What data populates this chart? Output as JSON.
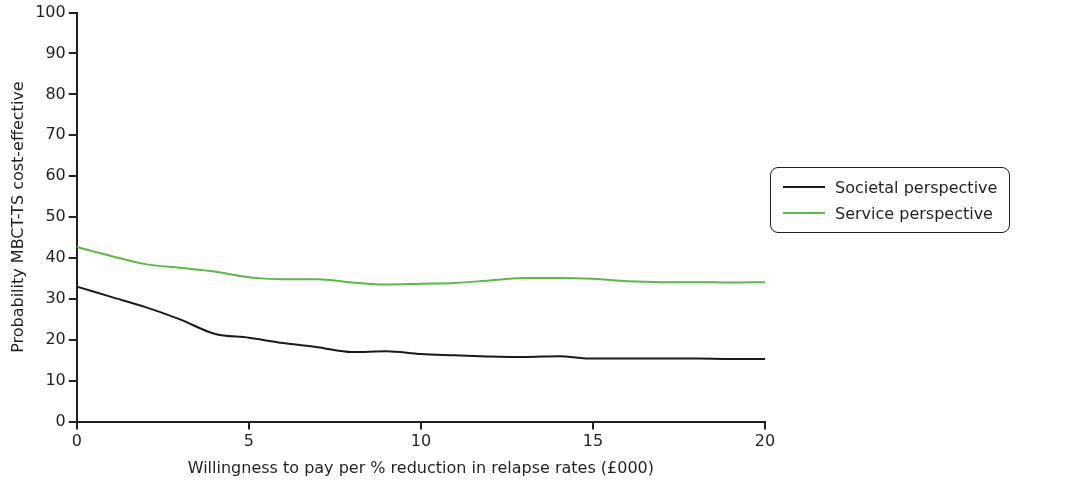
{
  "chart_data": {
    "type": "line",
    "xlabel": "Willingness to pay per % reduction in relapse rates (£000)",
    "ylabel": "Probability MBCT-TS cost-effective",
    "x": [
      0,
      1,
      2,
      3,
      4,
      5,
      6,
      7,
      8,
      9,
      10,
      11,
      12,
      13,
      14,
      15,
      16,
      17,
      18,
      19,
      20
    ],
    "series": [
      {
        "name": "Societal perspective",
        "color": "#1a1a1a",
        "values": [
          33,
          30.5,
          28,
          25,
          21.5,
          20.5,
          19.2,
          18.2,
          17,
          17.2,
          16.5,
          16.2,
          15.9,
          15.8,
          16,
          15.4,
          15.4,
          15.4,
          15.4,
          15.3,
          15.3
        ]
      },
      {
        "name": "Service perspective",
        "color": "#5cb84a",
        "values": [
          42.7,
          40.5,
          38.5,
          37.6,
          36.7,
          35.3,
          34.8,
          34.8,
          34,
          33.5,
          33.7,
          33.9,
          34.5,
          35.1,
          35.1,
          34.9,
          34.3,
          34.1,
          34.1,
          34,
          34.1
        ]
      }
    ],
    "xlim": [
      0,
      20
    ],
    "xticks": [
      0,
      5,
      10,
      15,
      20
    ],
    "ylim": [
      0,
      100
    ],
    "yticks": [
      0,
      10,
      20,
      30,
      40,
      50,
      60,
      70,
      80,
      90,
      100
    ],
    "grid": false,
    "legend": "right",
    "marker": "none",
    "line_style": "solid"
  }
}
